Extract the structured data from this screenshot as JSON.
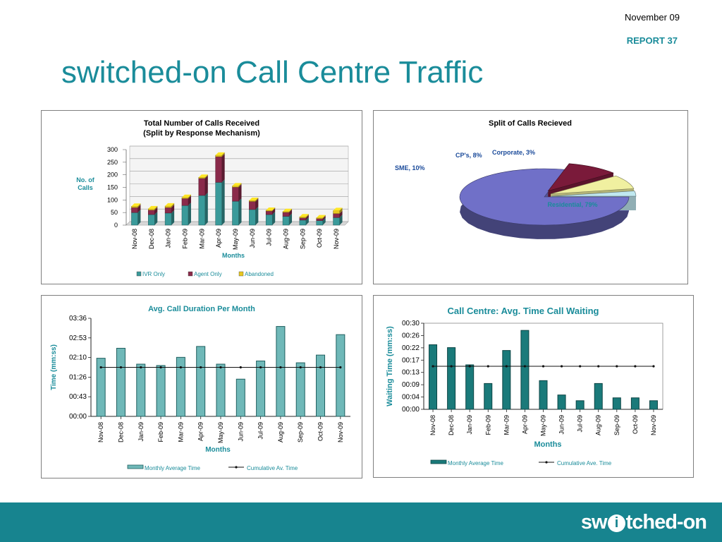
{
  "header": {
    "date": "November 09",
    "report": "REPORT 37",
    "title": "switched-on Call Centre Traffic"
  },
  "brand": {
    "pre": "sw",
    "i": "i",
    "post": "tched-on"
  },
  "colors": {
    "teal": "#1a8c9a",
    "ivr": "#3a9a9a",
    "agent": "#8a2a4a",
    "abandoned": "#e8c820",
    "pie_residential": "#7070c8",
    "pie_sme": "#7a1a3a",
    "pie_cps": "#f0f0a0",
    "pie_corporate": "#c0e8f0"
  },
  "chart_data": [
    {
      "type": "bar",
      "stacked": true,
      "title": "Total Number of Calls Received",
      "subtitle": "(Split by Response Mechanism)",
      "xlabel": "Months",
      "ylabel": "No. of Calls",
      "ylim": [
        0,
        300
      ],
      "yticks": [
        "0",
        "50",
        "100",
        "150",
        "200",
        "250",
        "300"
      ],
      "categories": [
        "Nov-08",
        "Dec-08",
        "Jan-09",
        "Feb-09",
        "Mar-09",
        "Apr-09",
        "May-09",
        "Jun-09",
        "Jul-09",
        "Aug-09",
        "Sep-09",
        "Oct-09",
        "Nov-09"
      ],
      "series": [
        {
          "name": "IVR Only",
          "values": [
            50,
            42,
            48,
            78,
            118,
            170,
            95,
            62,
            42,
            35,
            20,
            18,
            30
          ]
        },
        {
          "name": "Agent Only",
          "values": [
            20,
            18,
            22,
            28,
            68,
            102,
            56,
            32,
            14,
            16,
            9,
            8,
            16
          ]
        },
        {
          "name": "Abandoned",
          "values": [
            5,
            5,
            6,
            4,
            4,
            6,
            5,
            4,
            3,
            3,
            4,
            3,
            12
          ]
        }
      ],
      "grid": true,
      "legend_position": "bottom"
    },
    {
      "type": "pie",
      "title": "Split of Calls Recieved",
      "slices": [
        {
          "label": "Residential",
          "text": "Residential, 79%",
          "value": 79
        },
        {
          "label": "SME",
          "text": "SME, 10%",
          "value": 10
        },
        {
          "label": "CP's",
          "text": "CP's, 8%",
          "value": 8
        },
        {
          "label": "Corporate",
          "text": "Corporate, 3%",
          "value": 3
        }
      ]
    },
    {
      "type": "bar+line",
      "title": "Avg. Call Duration Per Month",
      "xlabel": "Months",
      "ylabel": "Time (mm:ss)",
      "ylim_seconds": [
        0,
        216
      ],
      "yticks": [
        "00:00",
        "00:43",
        "01:26",
        "02:10",
        "02:53",
        "03:36"
      ],
      "categories": [
        "Nov-08",
        "Dec-08",
        "Jan-09",
        "Feb-09",
        "Mar-09",
        "Apr-09",
        "May-09",
        "Jun-09",
        "Jul-09",
        "Aug-09",
        "Sep-09",
        "Oct-09",
        "Nov-09"
      ],
      "series": [
        {
          "name": "Monthly Average Time",
          "type": "bar",
          "values_seconds": [
            128,
            150,
            115,
            112,
            130,
            154,
            115,
            82,
            122,
            198,
            118,
            135,
            180
          ]
        },
        {
          "name": "Cumulative Av. Time",
          "type": "line",
          "values_seconds": [
            108,
            108,
            108,
            108,
            108,
            108,
            108,
            108,
            108,
            108,
            108,
            108,
            108
          ]
        }
      ],
      "grid": false,
      "legend_position": "bottom"
    },
    {
      "type": "bar+line",
      "title": "Call Centre: Avg. Time Call Waiting",
      "xlabel": "Months",
      "ylabel": "Waiting Time (mm:ss)",
      "ylim_seconds": [
        0,
        30
      ],
      "yticks": [
        "00:00",
        "00:04",
        "00:09",
        "00:13",
        "00:17",
        "00:22",
        "00:26",
        "00:30"
      ],
      "categories": [
        "Nov-08",
        "Dec-08",
        "Jan-09",
        "Feb-09",
        "Mar-09",
        "Apr-09",
        "May-09",
        "Jun-09",
        "Jul-09",
        "Aug-09",
        "Sep-09",
        "Oct-09",
        "Nov-09"
      ],
      "series": [
        {
          "name": "Monthly Average Time",
          "type": "bar",
          "values_seconds": [
            22.5,
            21.5,
            15.5,
            9,
            20.5,
            27.5,
            10,
            5,
            3,
            9,
            4,
            4,
            3
          ]
        },
        {
          "name": "Cumulative Ave. Time",
          "type": "line",
          "values_seconds": [
            15,
            15,
            15,
            15,
            15,
            15,
            15,
            15,
            15,
            15,
            15,
            15,
            15
          ]
        }
      ],
      "grid": false,
      "legend_position": "bottom"
    }
  ]
}
